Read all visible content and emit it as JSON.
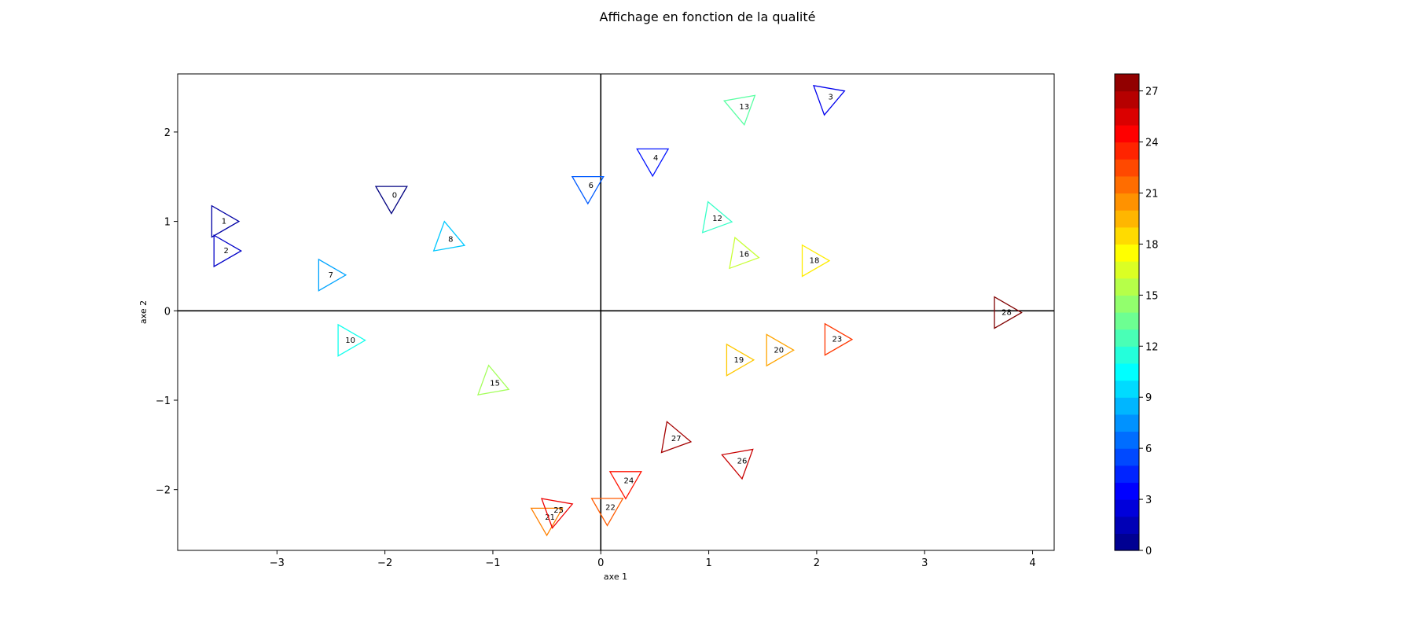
{
  "chart_data": {
    "type": "scatter",
    "title": "Affichage en fonction de la qualité",
    "xlabel": "axe 1",
    "ylabel": "axe 2",
    "xlim": [
      -3.92,
      4.2
    ],
    "ylim": [
      -2.68,
      2.65
    ],
    "x_ticks": [
      -3,
      -2,
      -1,
      0,
      1,
      2,
      3,
      4
    ],
    "y_ticks": [
      -2,
      -1,
      0,
      1,
      2
    ],
    "x_tick_labels": [
      "−3",
      "−2",
      "−1",
      "0",
      "1",
      "2",
      "3",
      "4"
    ],
    "y_tick_labels": [
      "−2",
      "−1",
      "0",
      "1",
      "2"
    ],
    "reference_lines": {
      "x": 0,
      "y": 0
    },
    "marker": "triangle (open), rotated per point",
    "colormap": "jet",
    "colorbar": {
      "min": 0,
      "max": 28,
      "levels": 28,
      "ticks": [
        0,
        3,
        6,
        9,
        12,
        15,
        18,
        21,
        24,
        27
      ],
      "tick_labels": [
        "0",
        "3",
        "6",
        "9",
        "12",
        "15",
        "18",
        "21",
        "24",
        "27"
      ]
    },
    "points": [
      {
        "label": "0",
        "x": -1.94,
        "y": 1.29,
        "value": 0,
        "angle": -90
      },
      {
        "label": "1",
        "x": -3.52,
        "y": 1.0,
        "value": 1,
        "angle": 0
      },
      {
        "label": "2",
        "x": -3.5,
        "y": 0.67,
        "value": 2,
        "angle": 0
      },
      {
        "label": "3",
        "x": 2.1,
        "y": 2.39,
        "value": 3,
        "angle": 20
      },
      {
        "label": "4",
        "x": 0.48,
        "y": 1.71,
        "value": 4,
        "angle": -90
      },
      {
        "label": "6",
        "x": -0.12,
        "y": 1.4,
        "value": 6,
        "angle": -90
      },
      {
        "label": "7",
        "x": -2.53,
        "y": 0.4,
        "value": 8,
        "angle": 0
      },
      {
        "label": "8",
        "x": -1.42,
        "y": 0.8,
        "value": 9,
        "angle": -20
      },
      {
        "label": "10",
        "x": -2.35,
        "y": -0.33,
        "value": 11,
        "angle": 0
      },
      {
        "label": "12",
        "x": 1.05,
        "y": 1.03,
        "value": 12,
        "angle": -10
      },
      {
        "label": "13",
        "x": 1.3,
        "y": 2.28,
        "value": 13,
        "angle": 160
      },
      {
        "label": "15",
        "x": -1.01,
        "y": -0.81,
        "value": 15,
        "angle": 100
      },
      {
        "label": "16",
        "x": 1.3,
        "y": 0.63,
        "value": 16,
        "angle": 110
      },
      {
        "label": "18",
        "x": 1.95,
        "y": 0.56,
        "value": 18,
        "angle": 0
      },
      {
        "label": "19",
        "x": 1.25,
        "y": -0.55,
        "value": 19,
        "angle": 0
      },
      {
        "label": "20",
        "x": 1.62,
        "y": -0.44,
        "value": 20,
        "angle": 0
      },
      {
        "label": "21",
        "x": -0.5,
        "y": -2.31,
        "value": 21,
        "angle": -90
      },
      {
        "label": "22",
        "x": 0.06,
        "y": -2.2,
        "value": 22,
        "angle": -90
      },
      {
        "label": "23",
        "x": 2.16,
        "y": -0.32,
        "value": 23,
        "angle": 0
      },
      {
        "label": "24",
        "x": 0.23,
        "y": -1.9,
        "value": 24,
        "angle": -90
      },
      {
        "label": "25",
        "x": -0.42,
        "y": -2.23,
        "value": 25,
        "angle": -100
      },
      {
        "label": "26",
        "x": 1.28,
        "y": -1.68,
        "value": 26,
        "angle": 160
      },
      {
        "label": "27",
        "x": 0.67,
        "y": -1.43,
        "value": 27,
        "angle": 110
      },
      {
        "label": "28",
        "x": 3.73,
        "y": -0.02,
        "value": 28,
        "angle": 0
      }
    ]
  }
}
